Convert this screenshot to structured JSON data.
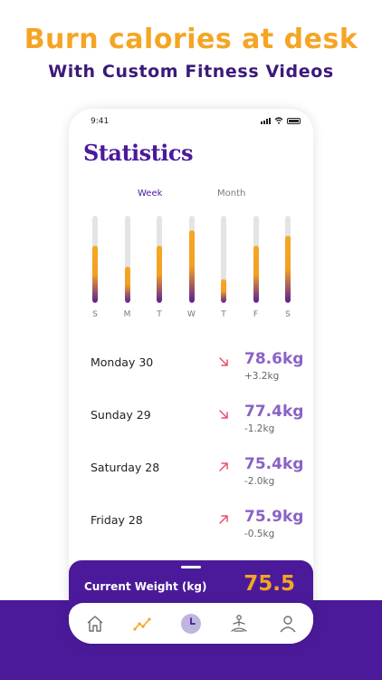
{
  "promo": {
    "headline": "Burn calories at desk",
    "subline": "With Custom Fitness Videos"
  },
  "status_bar": {
    "time": "9:41"
  },
  "screen": {
    "title": "Statistics",
    "tabs": [
      {
        "label": "Week",
        "active": true
      },
      {
        "label": "Month",
        "active": false
      }
    ]
  },
  "chart_data": {
    "type": "bar",
    "categories": [
      "S",
      "M",
      "T",
      "W",
      "T",
      "F",
      "S"
    ],
    "values": [
      0.66,
      0.42,
      0.66,
      0.83,
      0.27,
      0.66,
      0.77
    ],
    "ylim": [
      0,
      1
    ],
    "colors": {
      "top": "#f6a723",
      "bottom": "#5a1d96",
      "track": "#e4e4e4"
    }
  },
  "entries": [
    {
      "date": "Monday 30",
      "weight": "78.6kg",
      "delta": "+3.2kg",
      "arrow": "down-right-arrow"
    },
    {
      "date": "Sunday 29",
      "weight": "77.4kg",
      "delta": "-1.2kg",
      "arrow": "down-right-arrow"
    },
    {
      "date": "Saturday 28",
      "weight": "75.4kg",
      "delta": "-2.0kg",
      "arrow": "up-right-arrow"
    },
    {
      "date": "Friday 28",
      "weight": "75.9kg",
      "delta": "-0.5kg",
      "arrow": "up-right-arrow"
    }
  ],
  "current_weight": {
    "label": "Current Weight (kg)",
    "value": "75.5"
  },
  "nav": [
    {
      "icon": "home-icon"
    },
    {
      "icon": "stats-icon",
      "active": true
    },
    {
      "icon": "clock-icon"
    },
    {
      "icon": "yoga-icon"
    },
    {
      "icon": "profile-icon"
    }
  ],
  "colors": {
    "brand_purple": "#4b1a9a",
    "accent_orange": "#f5a524",
    "weight_purple": "#8a62c6",
    "arrow_pink": "#e8506b"
  }
}
